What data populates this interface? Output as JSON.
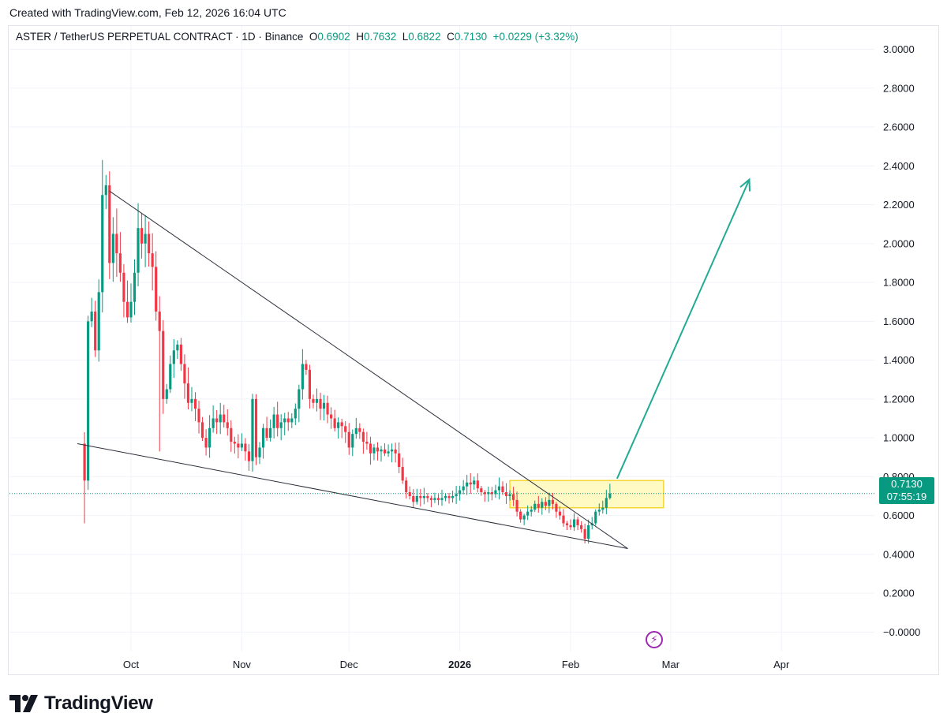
{
  "header": {
    "text": "Created with TradingView.com, Feb 12, 2026 16:04 UTC"
  },
  "legend": {
    "symbol": "ASTER / TetherUS PERPETUAL CONTRACT · 1D · Binance",
    "o_label": "O",
    "o_value": "0.6902",
    "h_label": "H",
    "h_value": "0.7632",
    "l_label": "L",
    "l_value": "0.6822",
    "c_label": "C",
    "c_value": "0.7130",
    "change": "+0.0229 (+3.32%)"
  },
  "price_tag": {
    "price": "0.7130",
    "countdown": "07:55:19"
  },
  "brand": {
    "name": "TradingView"
  },
  "colors": {
    "up": "#089981",
    "down": "#f23645",
    "arrow": "#22ab94",
    "zone_fill": "#fff9c4",
    "zone_border": "#f7d533",
    "trendline": "#2a2e39"
  },
  "chart_data": {
    "type": "candlestick",
    "title": "ASTER / TetherUS PERPETUAL CONTRACT · 1D · Binance",
    "x_ticks": [
      {
        "label": "Oct",
        "date": "2025-10-01",
        "bold": false
      },
      {
        "label": "Nov",
        "date": "2025-11-01",
        "bold": false
      },
      {
        "label": "Dec",
        "date": "2025-12-01",
        "bold": false
      },
      {
        "label": "2026",
        "date": "2026-01-01",
        "bold": true
      },
      {
        "label": "Feb",
        "date": "2026-02-01",
        "bold": false
      },
      {
        "label": "Mar",
        "date": "2026-03-01",
        "bold": false
      },
      {
        "label": "Apr",
        "date": "2026-04-01",
        "bold": false
      }
    ],
    "y_ticks": [
      "3.0000",
      "2.8000",
      "2.6000",
      "2.4000",
      "2.2000",
      "2.0000",
      "1.8000",
      "1.6000",
      "1.4000",
      "1.2000",
      "1.0000",
      "0.8000",
      "0.6000",
      "0.4000",
      "0.2000",
      "−0.0000"
    ],
    "ylim": [
      -0.1,
      3.12
    ],
    "xlim": [
      "2025-08-28",
      "2026-04-27"
    ],
    "current_price": 0.713,
    "candle_path": [
      [
        "2025-09-17",
        0.97
      ],
      [
        "2025-09-18",
        0.78
      ],
      [
        "2025-09-19",
        1.6
      ],
      [
        "2025-09-20",
        1.65
      ],
      [
        "2025-09-21",
        1.45
      ],
      [
        "2025-09-22",
        1.75
      ],
      [
        "2025-09-23",
        2.25
      ],
      [
        "2025-09-24",
        2.3
      ],
      [
        "2025-09-25",
        1.9
      ],
      [
        "2025-09-26",
        2.05
      ],
      [
        "2025-09-27",
        1.95
      ],
      [
        "2025-09-28",
        1.85
      ],
      [
        "2025-09-29",
        1.7
      ],
      [
        "2025-09-30",
        1.62
      ],
      [
        "2025-10-01",
        1.7
      ],
      [
        "2025-10-02",
        1.85
      ],
      [
        "2025-10-03",
        2.08
      ],
      [
        "2025-10-04",
        2.0
      ],
      [
        "2025-10-05",
        2.05
      ],
      [
        "2025-10-06",
        1.95
      ],
      [
        "2025-10-07",
        1.88
      ],
      [
        "2025-10-08",
        1.65
      ],
      [
        "2025-10-09",
        1.55
      ],
      [
        "2025-10-10",
        1.2
      ],
      [
        "2025-10-11",
        1.25
      ],
      [
        "2025-10-12",
        1.38
      ],
      [
        "2025-10-13",
        1.45
      ],
      [
        "2025-10-14",
        1.48
      ],
      [
        "2025-10-15",
        1.38
      ],
      [
        "2025-10-16",
        1.28
      ],
      [
        "2025-10-17",
        1.18
      ],
      [
        "2025-10-18",
        1.2
      ],
      [
        "2025-10-19",
        1.15
      ],
      [
        "2025-10-20",
        1.08
      ],
      [
        "2025-10-21",
        1.0
      ],
      [
        "2025-10-22",
        0.95
      ],
      [
        "2025-10-23",
        1.05
      ],
      [
        "2025-10-24",
        1.1
      ],
      [
        "2025-10-25",
        1.08
      ],
      [
        "2025-10-26",
        1.12
      ],
      [
        "2025-10-27",
        1.08
      ],
      [
        "2025-10-28",
        1.05
      ],
      [
        "2025-10-29",
        0.98
      ],
      [
        "2025-10-30",
        0.97
      ],
      [
        "2025-10-31",
        0.95
      ],
      [
        "2025-11-01",
        0.97
      ],
      [
        "2025-11-02",
        0.93
      ],
      [
        "2025-11-03",
        0.88
      ],
      [
        "2025-11-04",
        1.2
      ],
      [
        "2025-11-05",
        0.9
      ],
      [
        "2025-11-06",
        0.95
      ],
      [
        "2025-11-07",
        1.05
      ],
      [
        "2025-11-08",
        1.0
      ],
      [
        "2025-11-09",
        1.05
      ],
      [
        "2025-11-10",
        1.12
      ],
      [
        "2025-11-11",
        1.05
      ],
      [
        "2025-11-12",
        1.08
      ],
      [
        "2025-11-13",
        1.1
      ],
      [
        "2025-11-14",
        1.08
      ],
      [
        "2025-11-15",
        1.1
      ],
      [
        "2025-11-16",
        1.15
      ],
      [
        "2025-11-17",
        1.25
      ],
      [
        "2025-11-18",
        1.38
      ],
      [
        "2025-11-19",
        1.35
      ],
      [
        "2025-11-20",
        1.2
      ],
      [
        "2025-11-21",
        1.18
      ],
      [
        "2025-11-22",
        1.2
      ],
      [
        "2025-11-23",
        1.15
      ],
      [
        "2025-11-24",
        1.18
      ],
      [
        "2025-11-25",
        1.12
      ],
      [
        "2025-11-26",
        1.1
      ],
      [
        "2025-11-27",
        1.05
      ],
      [
        "2025-11-28",
        1.08
      ],
      [
        "2025-11-29",
        1.06
      ],
      [
        "2025-11-30",
        1.03
      ],
      [
        "2025-12-01",
        0.95
      ],
      [
        "2025-12-02",
        1.02
      ],
      [
        "2025-12-03",
        1.05
      ],
      [
        "2025-12-04",
        1.03
      ],
      [
        "2025-12-05",
        0.98
      ],
      [
        "2025-12-06",
        0.97
      ],
      [
        "2025-12-07",
        0.92
      ],
      [
        "2025-12-08",
        0.95
      ],
      [
        "2025-12-09",
        0.93
      ],
      [
        "2025-12-10",
        0.94
      ],
      [
        "2025-12-11",
        0.92
      ],
      [
        "2025-12-12",
        0.93
      ],
      [
        "2025-12-13",
        0.94
      ],
      [
        "2025-12-14",
        0.92
      ],
      [
        "2025-12-15",
        0.85
      ],
      [
        "2025-12-16",
        0.78
      ],
      [
        "2025-12-17",
        0.72
      ],
      [
        "2025-12-18",
        0.7
      ],
      [
        "2025-12-19",
        0.67
      ],
      [
        "2025-12-20",
        0.7
      ],
      [
        "2025-12-21",
        0.69
      ],
      [
        "2025-12-22",
        0.7
      ],
      [
        "2025-12-23",
        0.69
      ],
      [
        "2025-12-24",
        0.68
      ],
      [
        "2025-12-25",
        0.69
      ],
      [
        "2025-12-26",
        0.68
      ],
      [
        "2025-12-27",
        0.69
      ],
      [
        "2025-12-28",
        0.7
      ],
      [
        "2025-12-29",
        0.69
      ],
      [
        "2025-12-30",
        0.7
      ],
      [
        "2025-12-31",
        0.71
      ],
      [
        "2026-01-01",
        0.73
      ],
      [
        "2026-01-02",
        0.75
      ],
      [
        "2026-01-03",
        0.77
      ],
      [
        "2026-01-04",
        0.76
      ],
      [
        "2026-01-05",
        0.78
      ],
      [
        "2026-01-06",
        0.74
      ],
      [
        "2026-01-07",
        0.72
      ],
      [
        "2026-01-08",
        0.71
      ],
      [
        "2026-01-09",
        0.72
      ],
      [
        "2026-01-10",
        0.71
      ],
      [
        "2026-01-11",
        0.73
      ],
      [
        "2026-01-12",
        0.75
      ],
      [
        "2026-01-13",
        0.72
      ],
      [
        "2026-01-14",
        0.7
      ],
      [
        "2026-01-15",
        0.71
      ],
      [
        "2026-01-16",
        0.68
      ],
      [
        "2026-01-17",
        0.62
      ],
      [
        "2026-01-18",
        0.58
      ],
      [
        "2026-01-19",
        0.6
      ],
      [
        "2026-01-20",
        0.62
      ],
      [
        "2026-01-21",
        0.63
      ],
      [
        "2026-01-22",
        0.66
      ],
      [
        "2026-01-23",
        0.64
      ],
      [
        "2026-01-24",
        0.67
      ],
      [
        "2026-01-25",
        0.65
      ],
      [
        "2026-01-26",
        0.68
      ],
      [
        "2026-01-27",
        0.66
      ],
      [
        "2026-01-28",
        0.62
      ],
      [
        "2026-01-29",
        0.6
      ],
      [
        "2026-01-30",
        0.56
      ],
      [
        "2026-01-31",
        0.55
      ],
      [
        "2026-02-01",
        0.54
      ],
      [
        "2026-02-02",
        0.58
      ],
      [
        "2026-02-03",
        0.55
      ],
      [
        "2026-02-04",
        0.53
      ],
      [
        "2026-02-05",
        0.48
      ],
      [
        "2026-02-06",
        0.55
      ],
      [
        "2026-02-07",
        0.56
      ],
      [
        "2026-02-08",
        0.62
      ],
      [
        "2026-02-09",
        0.63
      ],
      [
        "2026-02-10",
        0.64
      ],
      [
        "2026-02-11",
        0.69
      ],
      [
        "2026-02-12",
        0.713
      ]
    ],
    "last_candle": {
      "date": "2026-02-12",
      "open": 0.6902,
      "high": 0.7632,
      "low": 0.6822,
      "close": 0.713
    },
    "annotations": {
      "upper_trendline": [
        [
          "2025-09-25",
          2.27
        ],
        [
          "2026-02-17",
          0.43
        ]
      ],
      "lower_trendline": [
        [
          "2025-09-16",
          0.97
        ],
        [
          "2026-02-17",
          0.43
        ]
      ],
      "breakout_zone": {
        "from": "2026-01-15",
        "to": "2026-02-27",
        "low": 0.64,
        "high": 0.78
      },
      "target_arrow": {
        "from": [
          "2026-02-14",
          0.79
        ],
        "to": [
          "2026-03-23",
          2.33
        ]
      }
    },
    "grid": true,
    "legend": "top-left"
  }
}
